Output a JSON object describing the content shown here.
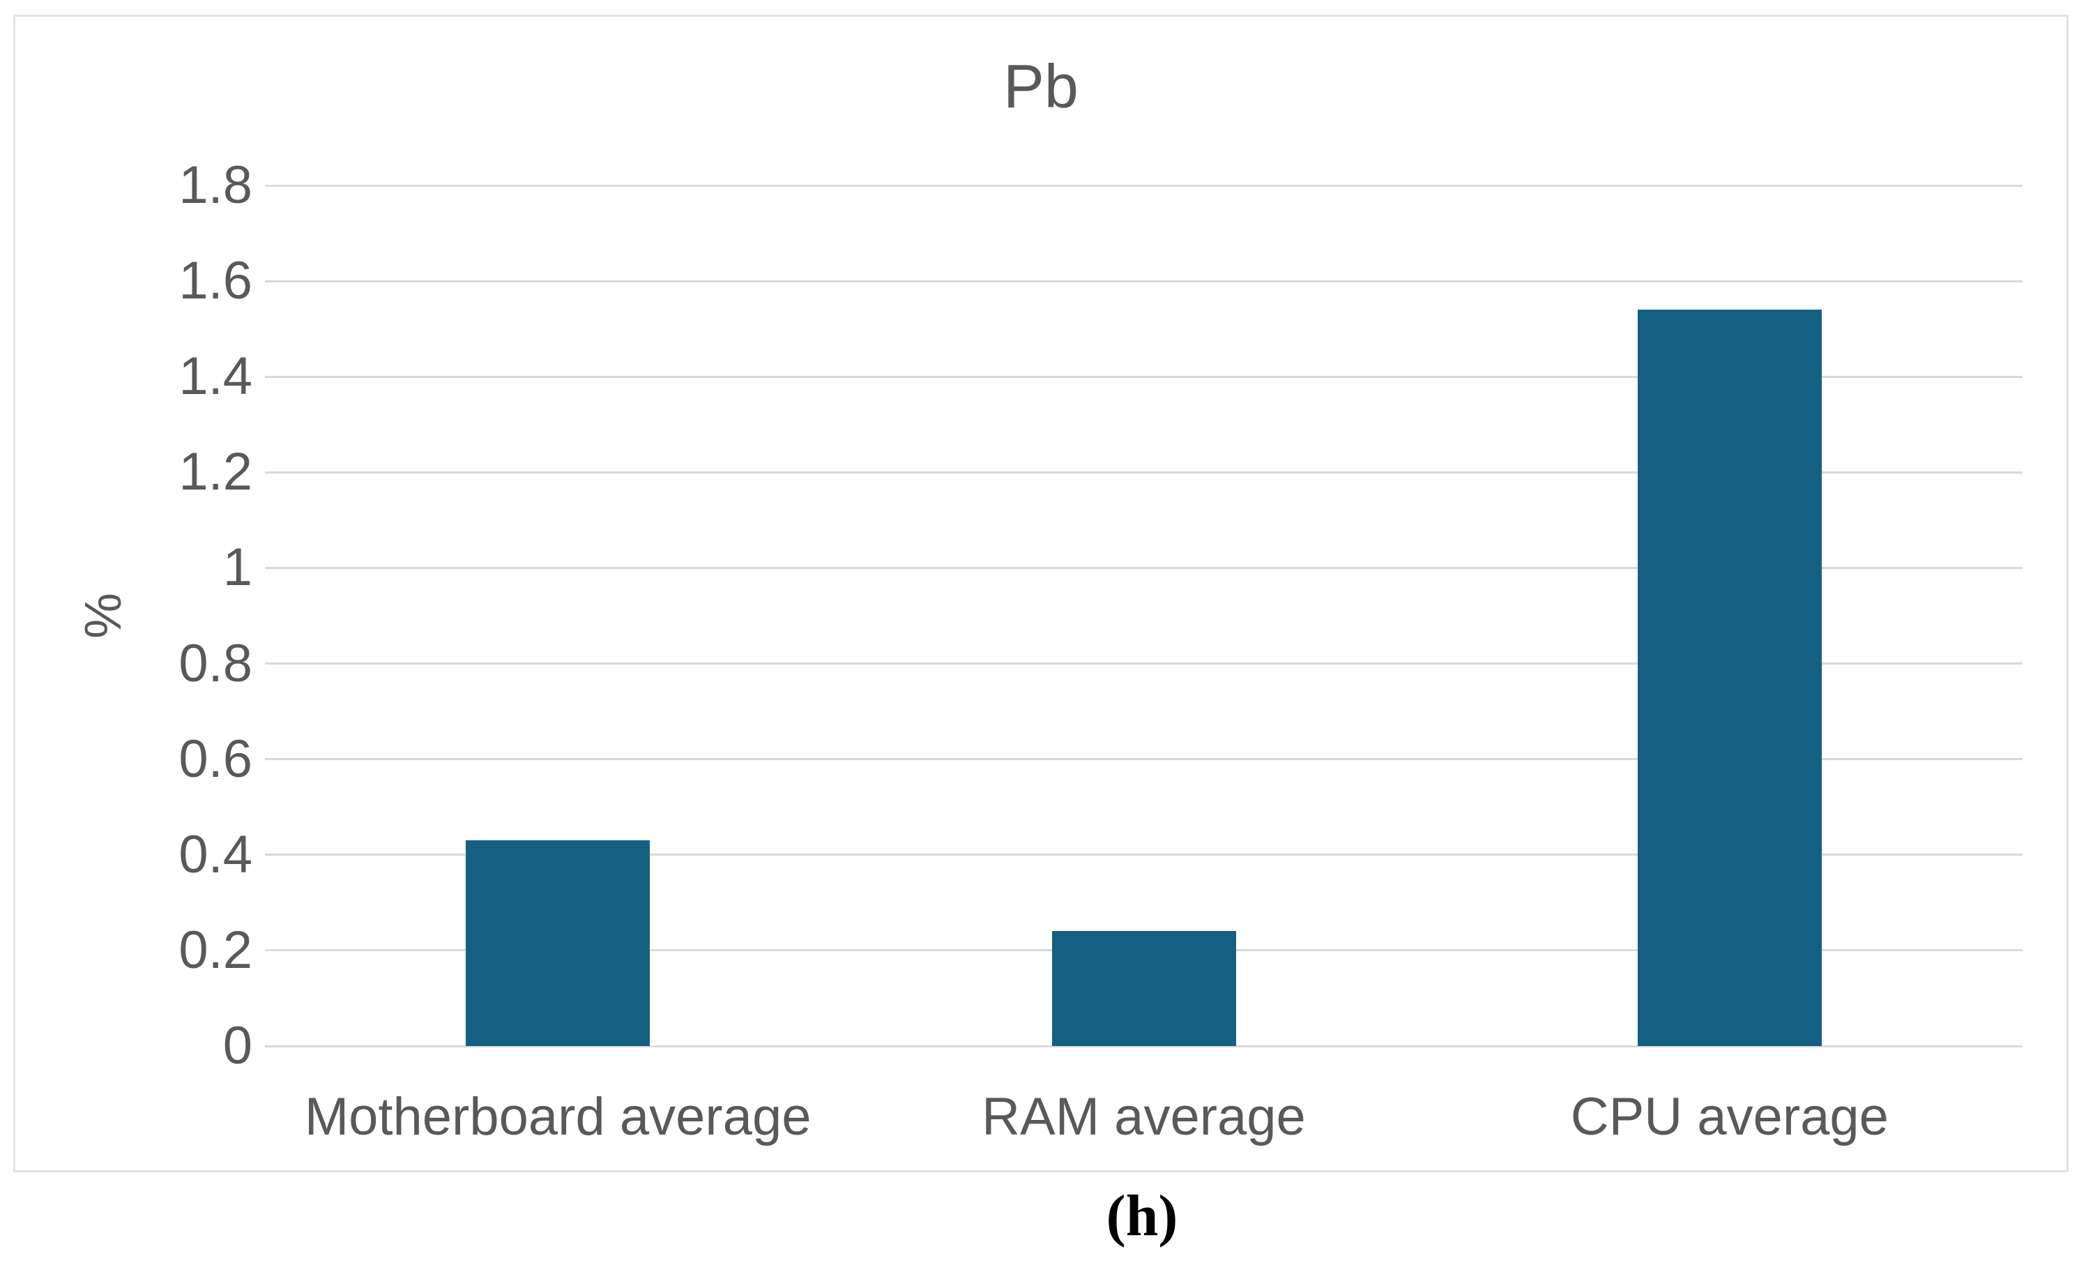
{
  "figure": {
    "caption": "(h)"
  },
  "chart_data": {
    "type": "bar",
    "title": "Pb",
    "xlabel": "",
    "ylabel": "%",
    "categories": [
      "Motherboard average",
      "RAM average",
      "CPU average"
    ],
    "values": [
      0.43,
      0.24,
      1.54
    ],
    "ylim": [
      0,
      1.8
    ],
    "ytick_step": 0.2,
    "ytick_labels": [
      "1.8",
      "1.6",
      "1.4",
      "1.2",
      "1",
      "0.8",
      "0.6",
      "0.4",
      "0.2",
      "0"
    ],
    "grid": "horizontal-on",
    "legend": "none",
    "colors": {
      "bar": "#156082",
      "gridline": "#d9d9d9",
      "axis_text": "#595959",
      "frame_border": "#e3e3e3",
      "background": "#ffffff",
      "caption_text": "#000000"
    }
  }
}
